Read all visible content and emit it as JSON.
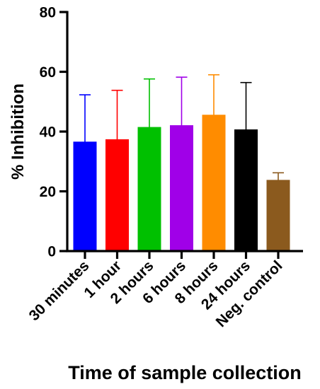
{
  "chart_data": {
    "type": "bar",
    "title": "",
    "xlabel": "Time of sample collection",
    "ylabel": "% Inhibition",
    "ylim": [
      0,
      80
    ],
    "yticks": [
      0,
      20,
      40,
      60,
      80
    ],
    "grid": false,
    "categories": [
      "30 minutes",
      "1 hour",
      "2 hours",
      "6 hours",
      "8 hours",
      "24 hours",
      "Neg. control"
    ],
    "values": [
      36.5,
      37.3,
      41.4,
      42.0,
      45.5,
      40.6,
      23.7
    ],
    "error_upper": [
      52.3,
      53.8,
      57.6,
      58.2,
      59.0,
      56.4,
      26.2
    ],
    "colors": [
      "#0000ff",
      "#ff0000",
      "#00c000",
      "#a000e8",
      "#ff8c00",
      "#000000",
      "#8b5a1e"
    ]
  }
}
